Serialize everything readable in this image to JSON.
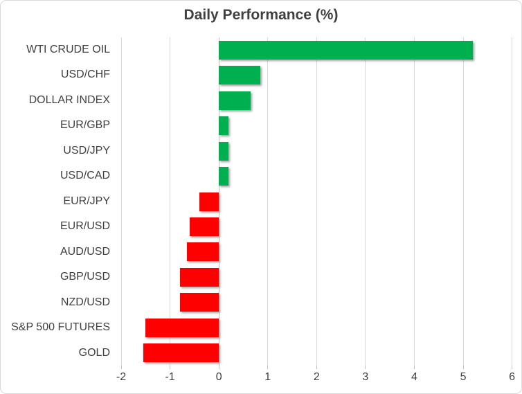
{
  "window": {
    "background": "#FFFFFF",
    "border_color": "#D9D9D9"
  },
  "chart_data": {
    "type": "bar",
    "orientation": "horizontal",
    "title": "Daily Performance (%)",
    "categories": [
      "WTI CRUDE OIL",
      "USD/CHF",
      "DOLLAR INDEX",
      "EUR/GBP",
      "USD/JPY",
      "USD/CAD",
      "EUR/JPY",
      "EUR/USD",
      "AUD/USD",
      "GBP/USD",
      "NZD/USD",
      "S&P 500 FUTURES",
      "GOLD"
    ],
    "values": [
      5.2,
      0.85,
      0.65,
      0.2,
      0.2,
      0.2,
      -0.4,
      -0.6,
      -0.65,
      -0.8,
      -0.8,
      -1.5,
      -1.55
    ],
    "xlim": [
      -2,
      6
    ],
    "x_ticks": [
      -2,
      -1,
      0,
      1,
      2,
      3,
      4,
      5,
      6
    ],
    "grid": true,
    "legend": "none",
    "xlabel": "",
    "ylabel": "",
    "colors": {
      "positive": "#00B050",
      "negative": "#FF0000",
      "gridline": "#D9D9D9",
      "axis_line": "#BFBFBF",
      "text": "#404040"
    }
  }
}
